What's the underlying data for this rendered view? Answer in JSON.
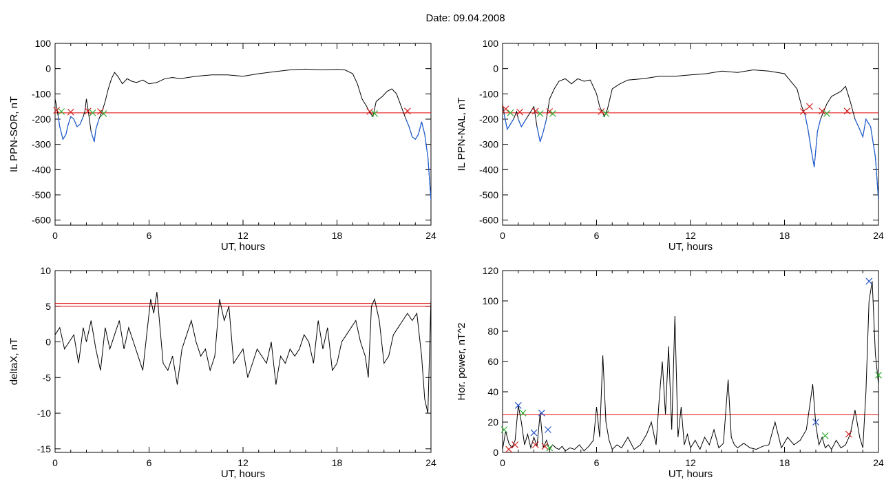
{
  "date_title": "Date:  09.04.2008",
  "colors": {
    "line": "#000000",
    "threshold": "#e00000",
    "highlight": "#1f5fd6",
    "marker_red": "#d62020",
    "marker_green": "#2fb02f",
    "marker_blue": "#2a56c8"
  },
  "chart_data": [
    {
      "type": "line",
      "ylabel": "IL PPN-SOR, nT",
      "xlabel": "UT, hours",
      "xlim": [
        0,
        24
      ],
      "ylim": [
        -620,
        100
      ],
      "xticks": [
        0,
        6,
        12,
        18,
        24
      ],
      "yticks": [
        100,
        0,
        -100,
        -200,
        -300,
        -400,
        -500,
        -600
      ],
      "threshold": -175,
      "series": [
        {
          "x": [
            0,
            0.1,
            0.2,
            0.3,
            0.5,
            0.7,
            0.8,
            1.0,
            1.2,
            1.4,
            1.6,
            1.8,
            1.9,
            2.0,
            2.1,
            2.3,
            2.5,
            2.6,
            2.8,
            3.0,
            3.2,
            3.4,
            3.6,
            3.8,
            4.0,
            4.3,
            4.6,
            4.9,
            5.2,
            5.6,
            6.0,
            6.5,
            7.0,
            7.5,
            8,
            9,
            10,
            11,
            12,
            13,
            14,
            15,
            16,
            17,
            18,
            18.5,
            19,
            19.3,
            19.6,
            19.9,
            20.1,
            20.3,
            20.5,
            20.7,
            20.9,
            21.2,
            21.5,
            21.8,
            22.1,
            22.4,
            22.6,
            22.8,
            23.0,
            23.2,
            23.4,
            23.6,
            23.8,
            24.0
          ],
          "y": [
            -120,
            -150,
            -190,
            -230,
            -280,
            -260,
            -230,
            -190,
            -200,
            -230,
            -220,
            -190,
            -170,
            -120,
            -160,
            -250,
            -290,
            -240,
            -200,
            -170,
            -130,
            -80,
            -40,
            -15,
            -30,
            -60,
            -40,
            -50,
            -55,
            -45,
            -60,
            -55,
            -40,
            -35,
            -40,
            -30,
            -25,
            -25,
            -30,
            -20,
            -12,
            -5,
            -2,
            -5,
            -3,
            -5,
            -20,
            -60,
            -120,
            -150,
            -175,
            -190,
            -130,
            -120,
            -110,
            -90,
            -80,
            -100,
            -150,
            -200,
            -230,
            -270,
            -280,
            -260,
            -210,
            -260,
            -350,
            -520
          ]
        }
      ],
      "markers": [
        {
          "x": 0.1,
          "y": -165,
          "color": "red"
        },
        {
          "x": 0.4,
          "y": -170,
          "color": "green"
        },
        {
          "x": 1.0,
          "y": -172,
          "color": "red"
        },
        {
          "x": 2.1,
          "y": -168,
          "color": "red"
        },
        {
          "x": 2.4,
          "y": -175,
          "color": "green"
        },
        {
          "x": 2.9,
          "y": -170,
          "color": "red"
        },
        {
          "x": 3.1,
          "y": -178,
          "color": "green"
        },
        {
          "x": 20.1,
          "y": -170,
          "color": "red"
        },
        {
          "x": 20.4,
          "y": -178,
          "color": "green"
        },
        {
          "x": 22.5,
          "y": -168,
          "color": "red"
        }
      ]
    },
    {
      "type": "line",
      "ylabel": "IL PPN-NAL, nT",
      "xlabel": "UT, hours",
      "xlim": [
        0,
        24
      ],
      "ylim": [
        -620,
        100
      ],
      "xticks": [
        0,
        6,
        12,
        18,
        24
      ],
      "yticks": [
        100,
        0,
        -100,
        -200,
        -300,
        -400,
        -500,
        -600
      ],
      "threshold": -175,
      "series": [
        {
          "x": [
            0,
            0.1,
            0.2,
            0.3,
            0.5,
            0.7,
            0.9,
            1.0,
            1.2,
            1.5,
            1.8,
            2.0,
            2.2,
            2.4,
            2.6,
            2.8,
            3.0,
            3.3,
            3.6,
            4.0,
            4.4,
            4.8,
            5.2,
            5.6,
            6.0,
            6.2,
            6.5,
            6.7,
            7.0,
            7.5,
            8,
            9,
            10,
            11,
            12,
            13,
            14,
            15,
            16,
            17,
            18,
            18.8,
            19.1,
            19.3,
            19.5,
            19.7,
            19.9,
            20.1,
            20.3,
            20.5,
            20.7,
            21.0,
            21.3,
            21.6,
            21.9,
            22.2,
            22.5,
            22.8,
            23.0,
            23.2,
            23.5,
            23.8,
            24.0
          ],
          "y": [
            -140,
            -180,
            -210,
            -240,
            -220,
            -200,
            -170,
            -200,
            -230,
            -200,
            -170,
            -150,
            -230,
            -290,
            -250,
            -200,
            -120,
            -80,
            -50,
            -40,
            -60,
            -40,
            -50,
            -45,
            -100,
            -150,
            -190,
            -160,
            -80,
            -60,
            -45,
            -40,
            -30,
            -30,
            -25,
            -20,
            -10,
            -15,
            -5,
            -10,
            -20,
            -80,
            -150,
            -180,
            -240,
            -320,
            -390,
            -250,
            -200,
            -170,
            -140,
            -110,
            -100,
            -90,
            -70,
            -130,
            -200,
            -240,
            -270,
            -200,
            -230,
            -350,
            -520
          ]
        }
      ],
      "markers": [
        {
          "x": 0.2,
          "y": -160,
          "color": "red"
        },
        {
          "x": 0.5,
          "y": -175,
          "color": "green"
        },
        {
          "x": 1.1,
          "y": -172,
          "color": "red"
        },
        {
          "x": 2.1,
          "y": -168,
          "color": "red"
        },
        {
          "x": 2.4,
          "y": -178,
          "color": "green"
        },
        {
          "x": 3.0,
          "y": -170,
          "color": "red"
        },
        {
          "x": 3.2,
          "y": -178,
          "color": "green"
        },
        {
          "x": 6.3,
          "y": -170,
          "color": "red"
        },
        {
          "x": 6.6,
          "y": -178,
          "color": "green"
        },
        {
          "x": 19.2,
          "y": -170,
          "color": "red"
        },
        {
          "x": 19.6,
          "y": -150,
          "color": "red"
        },
        {
          "x": 20.4,
          "y": -168,
          "color": "red"
        },
        {
          "x": 20.7,
          "y": -178,
          "color": "green"
        },
        {
          "x": 22.0,
          "y": -168,
          "color": "red"
        }
      ]
    },
    {
      "type": "line",
      "ylabel": "deltaX, nT",
      "xlabel": "UT, hours",
      "xlim": [
        0,
        24
      ],
      "ylim": [
        -15.5,
        10
      ],
      "xticks": [
        0,
        6,
        12,
        18,
        24
      ],
      "yticks": [
        10,
        5,
        0,
        -5,
        -10,
        -15
      ],
      "thresholds": [
        5.4,
        5.0
      ],
      "series": [
        {
          "x": [
            0,
            0.3,
            0.6,
            0.9,
            1.2,
            1.5,
            1.8,
            2.0,
            2.3,
            2.6,
            2.9,
            3.2,
            3.5,
            3.8,
            4.1,
            4.4,
            4.7,
            5.0,
            5.3,
            5.6,
            5.9,
            6.1,
            6.3,
            6.5,
            6.7,
            6.9,
            7.2,
            7.5,
            7.8,
            8.1,
            8.4,
            8.7,
            9.0,
            9.3,
            9.6,
            9.9,
            10.2,
            10.5,
            10.8,
            11.1,
            11.4,
            11.7,
            12.0,
            12.3,
            12.6,
            12.9,
            13.2,
            13.5,
            13.8,
            14.1,
            14.4,
            14.7,
            15.0,
            15.3,
            15.6,
            15.9,
            16.2,
            16.5,
            16.8,
            17.1,
            17.4,
            17.7,
            18.0,
            18.3,
            18.6,
            18.9,
            19.2,
            19.5,
            19.8,
            20.0,
            20.2,
            20.4,
            20.7,
            21.0,
            21.3,
            21.6,
            21.9,
            22.2,
            22.5,
            22.8,
            23.1,
            23.4,
            23.6,
            23.8,
            24.0
          ],
          "y": [
            1,
            2,
            -1,
            0,
            1,
            -3,
            2,
            0,
            3,
            -1,
            -4,
            2,
            -1,
            1,
            3,
            -1,
            2,
            0,
            -2,
            -4,
            2,
            6,
            4,
            7,
            2,
            -3,
            -4,
            -2,
            -6,
            -1,
            1,
            3,
            0,
            -2,
            -1,
            -4,
            -2,
            6,
            3,
            5,
            -3,
            -2,
            -1,
            -5,
            -3,
            -1,
            -2,
            -3,
            0,
            -6,
            -2,
            -3,
            -1,
            -2,
            -1,
            1,
            0,
            -3,
            3,
            -1,
            2,
            -4,
            -3,
            0,
            1,
            2,
            3,
            0,
            -2,
            -5,
            5,
            6,
            3,
            -3,
            -2,
            1,
            2,
            3,
            4,
            3,
            4,
            -2,
            -8,
            -10,
            6
          ]
        }
      ]
    },
    {
      "type": "line",
      "ylabel": "Hor. power, nT^2",
      "xlabel": "UT, hours",
      "xlim": [
        0,
        24
      ],
      "ylim": [
        0,
        120
      ],
      "xticks": [
        0,
        6,
        12,
        18,
        24
      ],
      "yticks": [
        120,
        100,
        80,
        60,
        40,
        20,
        0
      ],
      "threshold": 25,
      "series": [
        {
          "x": [
            0,
            0.2,
            0.4,
            0.6,
            0.8,
            1.0,
            1.2,
            1.4,
            1.6,
            1.8,
            2.0,
            2.2,
            2.4,
            2.6,
            2.8,
            3.0,
            3.2,
            3.4,
            3.6,
            3.8,
            4.0,
            4.3,
            4.6,
            4.9,
            5.2,
            5.5,
            5.8,
            6.0,
            6.2,
            6.4,
            6.6,
            6.8,
            7.0,
            7.3,
            7.6,
            8.0,
            8.4,
            8.8,
            9.2,
            9.5,
            9.8,
            10.0,
            10.2,
            10.4,
            10.6,
            10.8,
            11.0,
            11.2,
            11.4,
            11.6,
            11.8,
            12.0,
            12.3,
            12.6,
            12.9,
            13.2,
            13.5,
            13.8,
            14.1,
            14.4,
            14.6,
            14.8,
            15.0,
            15.4,
            15.8,
            16.2,
            16.6,
            17.0,
            17.4,
            17.8,
            18.2,
            18.6,
            19.0,
            19.4,
            19.8,
            20.0,
            20.2,
            20.4,
            20.6,
            20.8,
            21.0,
            21.3,
            21.6,
            21.9,
            22.2,
            22.5,
            22.8,
            23.0,
            23.2,
            23.4,
            23.6,
            23.8,
            24.0
          ],
          "y": [
            2,
            14,
            6,
            3,
            8,
            31,
            20,
            5,
            12,
            3,
            10,
            4,
            26,
            3,
            8,
            2,
            5,
            3,
            2,
            4,
            1,
            3,
            2,
            5,
            1,
            4,
            8,
            30,
            10,
            64,
            20,
            8,
            2,
            5,
            3,
            10,
            2,
            5,
            12,
            20,
            5,
            35,
            60,
            25,
            70,
            15,
            90,
            10,
            30,
            5,
            12,
            3,
            8,
            2,
            10,
            5,
            15,
            3,
            6,
            48,
            10,
            5,
            3,
            6,
            3,
            2,
            4,
            5,
            20,
            3,
            10,
            5,
            8,
            15,
            45,
            18,
            5,
            10,
            3,
            5,
            2,
            8,
            3,
            5,
            12,
            28,
            10,
            3,
            40,
            100,
            113,
            65,
            45
          ]
        }
      ],
      "markers": [
        {
          "x": 0.1,
          "y": 15,
          "color": "green"
        },
        {
          "x": 0.4,
          "y": 2,
          "color": "red"
        },
        {
          "x": 0.8,
          "y": 5,
          "color": "red"
        },
        {
          "x": 1.0,
          "y": 31,
          "color": "blue"
        },
        {
          "x": 1.3,
          "y": 26,
          "color": "green"
        },
        {
          "x": 2.0,
          "y": 13,
          "color": "blue"
        },
        {
          "x": 2.1,
          "y": 5,
          "color": "red"
        },
        {
          "x": 2.5,
          "y": 26,
          "color": "blue"
        },
        {
          "x": 2.7,
          "y": 4,
          "color": "red"
        },
        {
          "x": 2.9,
          "y": 15,
          "color": "blue"
        },
        {
          "x": 3.0,
          "y": 3,
          "color": "green"
        },
        {
          "x": 20.0,
          "y": 20,
          "color": "blue"
        },
        {
          "x": 20.6,
          "y": 11,
          "color": "green"
        },
        {
          "x": 22.1,
          "y": 12,
          "color": "red"
        },
        {
          "x": 23.4,
          "y": 113,
          "color": "blue"
        },
        {
          "x": 24.0,
          "y": 51,
          "color": "green"
        }
      ]
    }
  ]
}
